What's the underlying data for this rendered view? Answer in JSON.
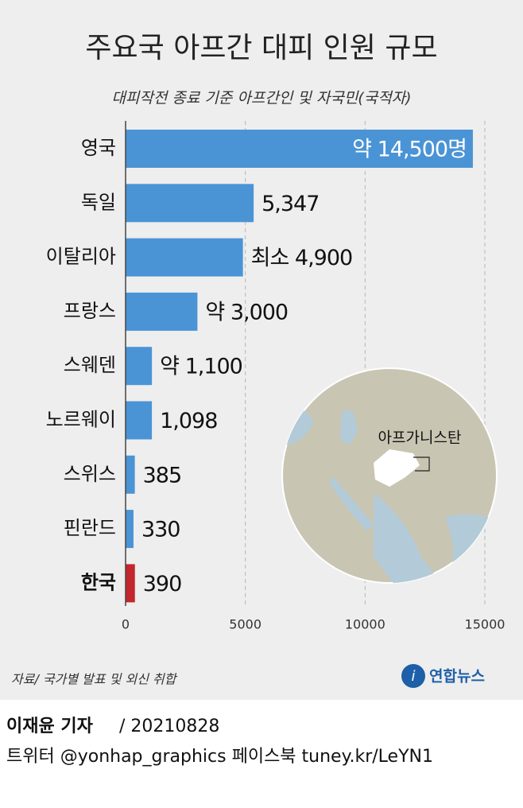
{
  "chart_data": {
    "type": "bar",
    "orientation": "horizontal",
    "title": "주요국 아프간 대피 인원 규모",
    "subtitle": "대피작전 종료 기준 아프간인 및 자국민(국적자)",
    "categories": [
      "영국",
      "독일",
      "이탈리아",
      "프랑스",
      "스웨덴",
      "노르웨이",
      "스위스",
      "핀란드",
      "한국"
    ],
    "values": [
      14500,
      5347,
      4900,
      3000,
      1100,
      1098,
      385,
      330,
      390
    ],
    "value_labels": [
      "약 14,500명",
      "5,347",
      "최소 4,900",
      "약 3,000",
      "약 1,100",
      "1,098",
      "385",
      "330",
      "390"
    ],
    "color": "#4a94d6",
    "colors": [
      "#4a94d6",
      "#4a94d6",
      "#4a94d6",
      "#4a94d6",
      "#4a94d6",
      "#4a94d6",
      "#4a94d6",
      "#4a94d6",
      "#c3262c"
    ],
    "xlim": [
      0,
      15000
    ],
    "xticks": [
      0,
      5000,
      10000,
      15000
    ],
    "grid": true,
    "map_label": "아프가니스탄",
    "source": "자료/ 국가별 발표 및 외신 취합",
    "logo": "연합뉴스"
  },
  "credit": {
    "author": "이재윤 기자",
    "date": "/ 20210828",
    "social": "트위터 @yonhap_graphics  페이스북 tuney.kr/LeYN1"
  }
}
